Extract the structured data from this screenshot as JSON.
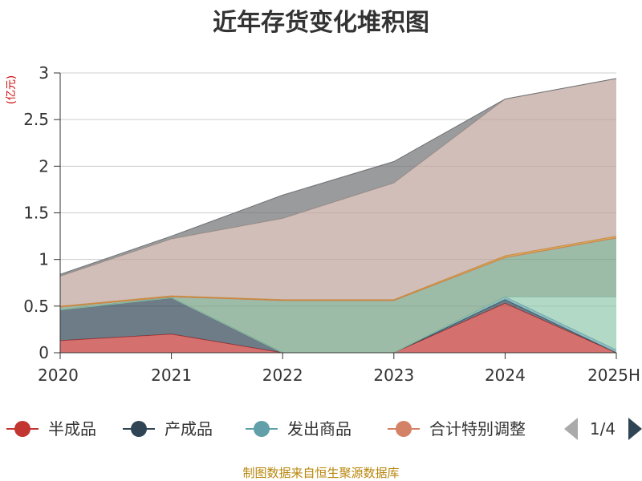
{
  "chart_data": {
    "type": "area",
    "stacked": true,
    "title": "近年存货变化堆积图",
    "ylabel": "(亿元)",
    "x": [
      "2020",
      "2021",
      "2022",
      "2023",
      "2024",
      "2025H"
    ],
    "ylim": [
      0,
      3
    ],
    "yticks": [
      "0",
      "0.5",
      "1",
      "1.5",
      "2",
      "2.5",
      "3"
    ],
    "series": [
      {
        "name": "半成品",
        "color": "#c23531",
        "values": [
          0.13,
          0.2,
          0.0,
          0.0,
          0.53,
          0.0
        ]
      },
      {
        "name": "产成品",
        "color": "#2f4554",
        "values": [
          0.33,
          0.39,
          0.0,
          0.0,
          0.04,
          0.0
        ]
      },
      {
        "name": "发出商品",
        "color": "#61a0a8",
        "values": [
          0.0,
          0.0,
          0.0,
          0.0,
          0.03,
          0.03
        ]
      },
      {
        "name": "",
        "color": "#91c7ae",
        "values": [
          0.0,
          0.0,
          0.0,
          0.0,
          0.0,
          0.57
        ]
      },
      {
        "name": "",
        "color": "#749f83",
        "values": [
          0.03,
          0.01,
          0.56,
          0.56,
          0.42,
          0.63
        ]
      },
      {
        "name": "合计特别调整",
        "color": "#d48265",
        "values": [
          0.0,
          0.0,
          0.0,
          0.0,
          0.0,
          0.0
        ]
      },
      {
        "name": "",
        "color": "#ca8622",
        "values": [
          0.01,
          0.01,
          0.01,
          0.01,
          0.02,
          0.02
        ]
      },
      {
        "name": "",
        "color": "#bda29a",
        "values": [
          0.32,
          0.61,
          0.87,
          1.25,
          1.68,
          1.69
        ]
      },
      {
        "name": "",
        "color": "#6e7074",
        "values": [
          0.02,
          0.03,
          0.25,
          0.23,
          0.0,
          0.0
        ]
      }
    ],
    "grid": true,
    "legend": "bottom"
  },
  "legend_pager": {
    "label": "1/4",
    "prev_color": "#aaaaaa",
    "next_color": "#2f4554"
  },
  "source_text": "制图数据来自恒生聚源数据库"
}
